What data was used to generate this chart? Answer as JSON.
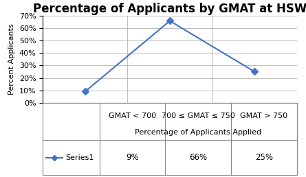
{
  "title": "Percentage of Applicants by GMAT at HSW",
  "xlabel": "Percentage of Applicants Applied",
  "ylabel": "Percent Applicants",
  "categories": [
    "GMAT < 700",
    "700 ≤ GMAT ≤ 750",
    "GMAT > 750"
  ],
  "values": [
    9,
    66,
    25
  ],
  "value_labels": [
    "9%",
    "66%",
    "25%"
  ],
  "series_name": "Series1",
  "line_color": "#4472C4",
  "marker": "D",
  "marker_size": 5,
  "ylim": [
    0,
    70
  ],
  "yticks": [
    0,
    10,
    20,
    30,
    40,
    50,
    60,
    70
  ],
  "ytick_labels": [
    "0%",
    "10%",
    "20%",
    "30%",
    "40%",
    "50%",
    "60%",
    "70%"
  ],
  "background_color": "#FFFFFF",
  "grid_color": "#BEBEBE",
  "title_fontsize": 12,
  "axis_label_fontsize": 8,
  "tick_fontsize": 8,
  "cat_label_fontsize": 8,
  "legend_fontsize": 8,
  "value_fontsize": 8.5
}
